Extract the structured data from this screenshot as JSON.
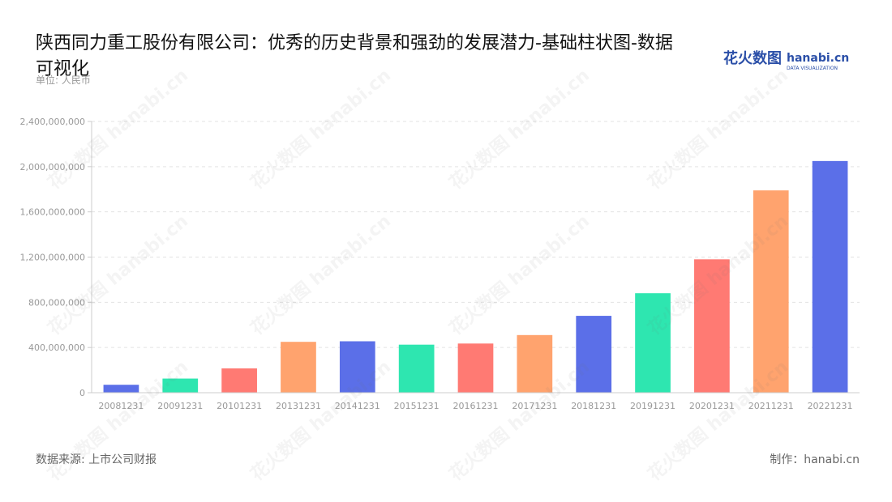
{
  "title": "陕西同力重工股份有限公司：优秀的历史背景和强劲的发展潜力-基础柱状图-数据可视化",
  "unit_label": "单位: 人民币",
  "brand": {
    "cn": "花火数图",
    "en": "hanabi.cn",
    "tagline": "DATA VISUALIZATION"
  },
  "source": "数据来源: 上市公司财报",
  "credit": "制作：hanabi.cn",
  "colors": {
    "blue": "#5b6fe8",
    "green": "#2ee6b0",
    "red": "#ff7a73",
    "orange": "#ffa36e",
    "brand_blue": "#2b4fa8",
    "grid": "#e3e3e3",
    "axis_text": "#999999"
  },
  "chart_data": {
    "type": "bar",
    "categories": [
      "20081231",
      "20091231",
      "20101231",
      "20131231",
      "20141231",
      "20151231",
      "20161231",
      "20171231",
      "20181231",
      "20191231",
      "20201231",
      "20211231",
      "20221231"
    ],
    "values": [
      70000000,
      125000000,
      215000000,
      450000000,
      455000000,
      425000000,
      435000000,
      510000000,
      680000000,
      880000000,
      1180000000,
      1790000000,
      2050000000
    ],
    "bar_colors": [
      "blue",
      "green",
      "red",
      "orange",
      "blue",
      "green",
      "red",
      "orange",
      "blue",
      "green",
      "red",
      "orange",
      "blue"
    ],
    "yticks": [
      0,
      400000000,
      800000000,
      1200000000,
      1600000000,
      2000000000,
      2400000000
    ],
    "ytick_labels": [
      "0",
      "400,000,000",
      "800,000,000",
      "1,200,000,000",
      "1,600,000,000",
      "2,000,000,000",
      "2,400,000,000"
    ],
    "ylim": [
      0,
      2400000000
    ],
    "grid": true,
    "legend": "none"
  }
}
